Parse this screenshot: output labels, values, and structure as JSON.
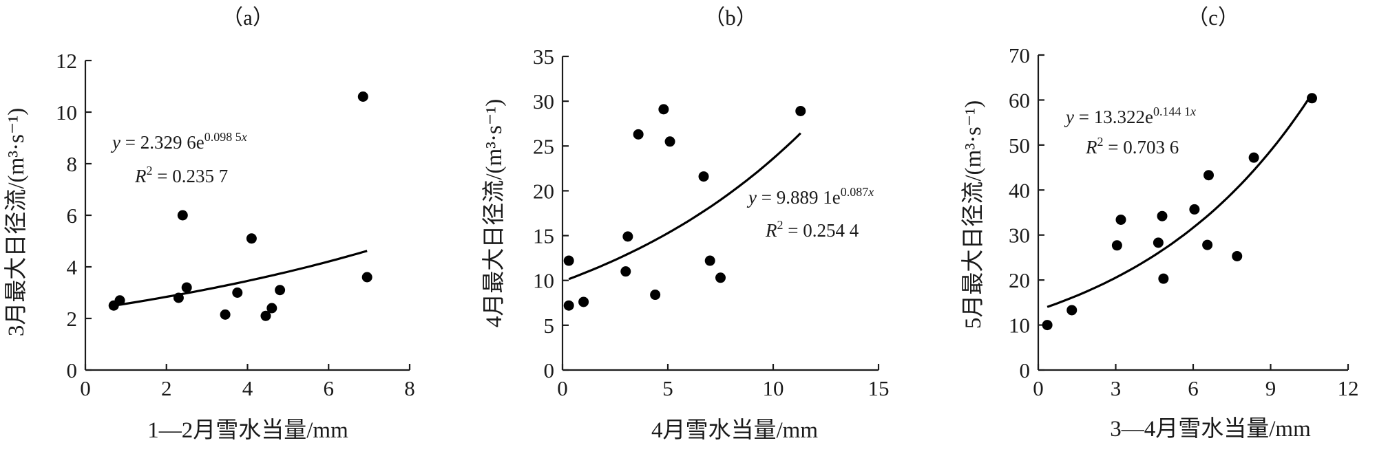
{
  "chart_data": [
    {
      "type": "scatter",
      "panel_label": "（a）",
      "xlabel": "1—2月雪水当量/mm",
      "ylabel": "3月最大日径流/(m³·s⁻¹)",
      "xlim": [
        0,
        8
      ],
      "ylim": [
        0,
        12
      ],
      "xticks": [
        "0",
        "2",
        "4",
        "6",
        "8"
      ],
      "yticks": [
        "0",
        "2",
        "4",
        "6",
        "8",
        "10",
        "12"
      ],
      "points": [
        {
          "x": 0.7,
          "y": 2.5
        },
        {
          "x": 0.85,
          "y": 2.7
        },
        {
          "x": 2.3,
          "y": 2.8
        },
        {
          "x": 2.4,
          "y": 6.0
        },
        {
          "x": 2.5,
          "y": 3.2
        },
        {
          "x": 3.45,
          "y": 2.15
        },
        {
          "x": 3.75,
          "y": 3.0
        },
        {
          "x": 4.1,
          "y": 5.1
        },
        {
          "x": 4.45,
          "y": 2.1
        },
        {
          "x": 4.6,
          "y": 2.4
        },
        {
          "x": 4.8,
          "y": 3.1
        },
        {
          "x": 6.85,
          "y": 10.6
        },
        {
          "x": 6.95,
          "y": 3.6
        }
      ],
      "fit": {
        "a": 2.3296,
        "b": 0.0985,
        "x_range": [
          0.7,
          6.95
        ]
      },
      "equation": {
        "lhs": "y",
        "mid": " = 2.329 6e",
        "exp": "0.098 5",
        "var": "x"
      },
      "r2": {
        "label": "R",
        "sup": "2",
        "value": " = 0.235 7"
      }
    },
    {
      "type": "scatter",
      "panel_label": "（b）",
      "xlabel": "4月雪水当量/mm",
      "ylabel": "4月最大日径流/(m³·s⁻¹)",
      "xlim": [
        0,
        15
      ],
      "ylim": [
        0,
        35
      ],
      "xticks": [
        "0",
        "5",
        "10",
        "15"
      ],
      "yticks": [
        "0",
        "5",
        "10",
        "15",
        "20",
        "25",
        "30",
        "35"
      ],
      "points": [
        {
          "x": 0.3,
          "y": 12.2
        },
        {
          "x": 0.3,
          "y": 7.2
        },
        {
          "x": 1.0,
          "y": 7.6
        },
        {
          "x": 3.0,
          "y": 11.0
        },
        {
          "x": 3.1,
          "y": 14.9
        },
        {
          "x": 3.6,
          "y": 26.3
        },
        {
          "x": 4.4,
          "y": 8.4
        },
        {
          "x": 4.8,
          "y": 29.1
        },
        {
          "x": 5.1,
          "y": 25.5
        },
        {
          "x": 6.7,
          "y": 21.6
        },
        {
          "x": 7.0,
          "y": 12.2
        },
        {
          "x": 7.5,
          "y": 10.3
        },
        {
          "x": 11.3,
          "y": 28.9
        }
      ],
      "fit": {
        "a": 9.8891,
        "b": 0.087,
        "x_range": [
          0.3,
          11.3
        ]
      },
      "equation": {
        "lhs": "y",
        "mid": " = 9.889 1e",
        "exp": "0.087",
        "var": "x"
      },
      "r2": {
        "label": "R",
        "sup": "2",
        "value": " = 0.254 4"
      }
    },
    {
      "type": "scatter",
      "panel_label": "（c）",
      "xlabel": "3—4月雪水当量/mm",
      "ylabel": "5月最大日径流/(m³·s⁻¹)",
      "xlim": [
        0,
        12
      ],
      "ylim": [
        0,
        70
      ],
      "xticks": [
        "0",
        "3",
        "6",
        "9",
        "12"
      ],
      "yticks": [
        "0",
        "10",
        "20",
        "30",
        "40",
        "50",
        "60",
        "70"
      ],
      "points": [
        {
          "x": 0.35,
          "y": 10.0
        },
        {
          "x": 1.3,
          "y": 13.3
        },
        {
          "x": 3.05,
          "y": 27.7
        },
        {
          "x": 3.2,
          "y": 33.4
        },
        {
          "x": 4.65,
          "y": 28.3
        },
        {
          "x": 4.8,
          "y": 34.2
        },
        {
          "x": 4.85,
          "y": 20.3
        },
        {
          "x": 6.05,
          "y": 35.7
        },
        {
          "x": 6.55,
          "y": 27.8
        },
        {
          "x": 6.6,
          "y": 43.3
        },
        {
          "x": 7.7,
          "y": 25.3
        },
        {
          "x": 8.35,
          "y": 47.2
        },
        {
          "x": 10.6,
          "y": 60.4
        }
      ],
      "fit": {
        "a": 13.322,
        "b": 0.1441,
        "x_range": [
          0.35,
          10.6
        ]
      },
      "equation": {
        "lhs": "y",
        "mid": " = 13.322e",
        "exp": "0.144 1",
        "var": "x"
      },
      "r2": {
        "label": "R",
        "sup": "2",
        "value": " = 0.703 6"
      }
    }
  ]
}
